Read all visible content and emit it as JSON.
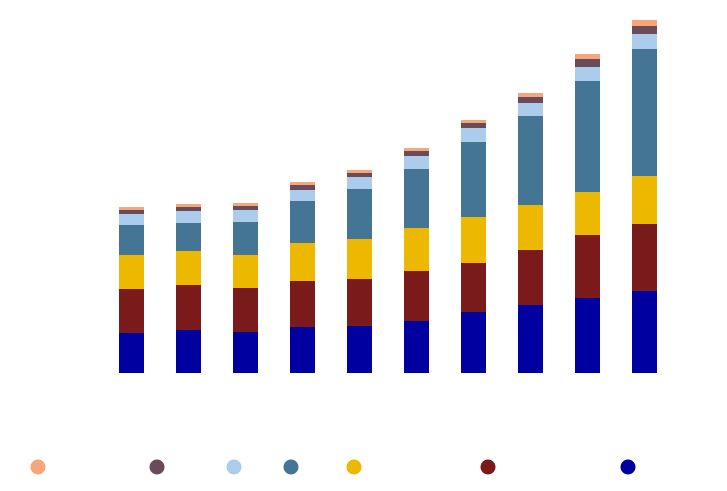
{
  "chart_data": {
    "type": "bar",
    "stacked": true,
    "categories": [
      "",
      "",
      "",
      "",
      "",
      "",
      "",
      "",
      "",
      ""
    ],
    "ylim": [
      0,
      355
    ],
    "grid": false,
    "legend_position": "bottom",
    "series": [
      {
        "color": "#0000A0",
        "values": [
          40,
          43,
          41,
          46,
          47,
          52,
          61,
          68,
          75,
          82
        ]
      },
      {
        "color": "#7A1A1A",
        "values": [
          44,
          45,
          44,
          46,
          47,
          50,
          49,
          55,
          63,
          67
        ]
      },
      {
        "color": "#EDB800",
        "values": [
          34,
          34,
          33,
          38,
          40,
          43,
          46,
          45,
          43,
          48
        ]
      },
      {
        "color": "#457594",
        "values": [
          30,
          28,
          33,
          42,
          50,
          59,
          75,
          89,
          111,
          127
        ]
      },
      {
        "color": "#ABCDEB",
        "values": [
          11,
          12,
          12,
          11,
          12,
          13,
          14,
          13,
          14,
          15
        ]
      },
      {
        "color": "#6A4B5A",
        "values": [
          4,
          4,
          4,
          5,
          4,
          5,
          5,
          6,
          8,
          8
        ]
      },
      {
        "color": "#F7A67A",
        "values": [
          3,
          3,
          3,
          3,
          3,
          3,
          3,
          4,
          5,
          6
        ]
      }
    ],
    "legend_order": [
      6,
      5,
      4,
      3,
      2,
      1,
      0
    ]
  }
}
